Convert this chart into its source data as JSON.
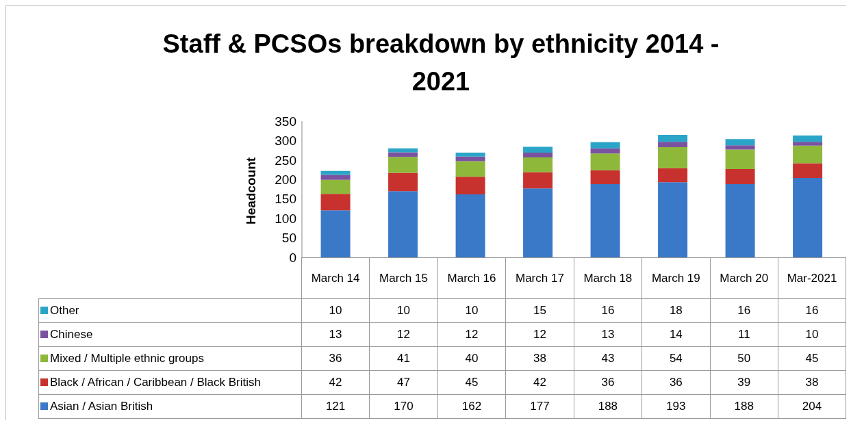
{
  "chart_data": {
    "type": "bar",
    "title": "Staff & PCSOs breakdown by ethnicity 2014 - 2021",
    "ylabel": "Headcount",
    "categories": [
      "March 14",
      "March 15",
      "March 16",
      "March 17",
      "March 18",
      "March 19",
      "March 20",
      "Mar-2021"
    ],
    "stacked": true,
    "ylim": [
      0,
      350
    ],
    "yticks": [
      0,
      50,
      100,
      150,
      200,
      250,
      300,
      350
    ],
    "data_labels": true,
    "legend": "bottom",
    "series": [
      {
        "name": "Asian / Asian British",
        "color": "#3a78c8",
        "values": [
          121,
          170,
          162,
          177,
          188,
          193,
          188,
          204
        ]
      },
      {
        "name": "Black / African / Caribbean / Black British",
        "color": "#c8322e",
        "values": [
          42,
          47,
          45,
          42,
          36,
          36,
          39,
          38
        ]
      },
      {
        "name": "Mixed / Multiple ethnic groups",
        "color": "#8db83a",
        "values": [
          36,
          41,
          40,
          38,
          43,
          54,
          50,
          45
        ]
      },
      {
        "name": "Chinese",
        "color": "#7a52a0",
        "values": [
          13,
          12,
          12,
          12,
          13,
          14,
          11,
          10
        ]
      },
      {
        "name": "Other",
        "color": "#2aa5c8",
        "values": [
          10,
          10,
          10,
          15,
          16,
          18,
          16,
          16
        ]
      }
    ]
  }
}
